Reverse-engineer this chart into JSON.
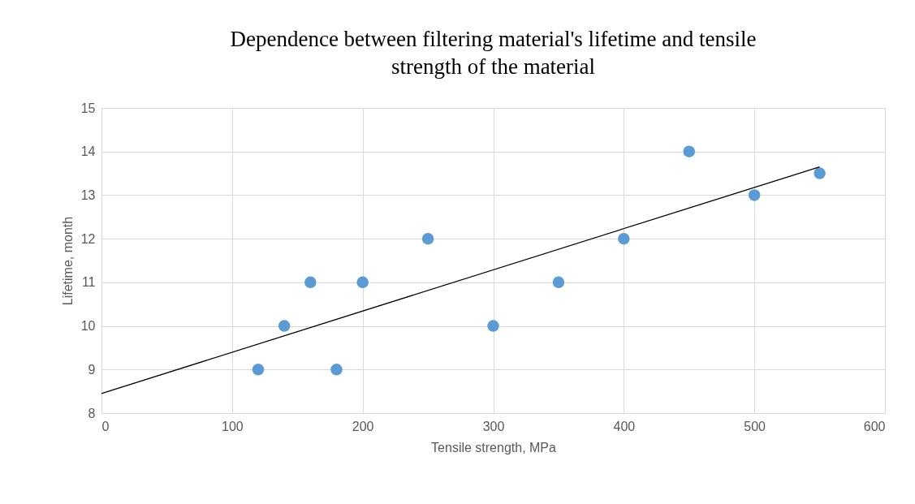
{
  "chart_data": {
    "type": "scatter",
    "title": "Dependence between filtering material's lifetime and tensile strength of the material",
    "xlabel": "Tensile strength, MPa",
    "ylabel": "Lifetime, month",
    "xlim": [
      0,
      600
    ],
    "xticks": [
      0,
      100,
      200,
      300,
      400,
      500,
      600
    ],
    "ylim": [
      8,
      15
    ],
    "yticks": [
      8,
      9,
      10,
      11,
      12,
      13,
      14,
      15
    ],
    "grid": true,
    "series": [
      {
        "color": "#5b9bd5",
        "marker": "circle",
        "x": [
          120,
          140,
          160,
          180,
          200,
          250,
          300,
          350,
          400,
          450,
          500,
          550
        ],
        "values": [
          9,
          10,
          11,
          9,
          11,
          12,
          10,
          11,
          12,
          14,
          13,
          13.5
        ]
      },
      {
        "type": "line",
        "color": "#000000",
        "x": [
          0,
          550
        ],
        "values": [
          8.45,
          13.65
        ]
      }
    ]
  }
}
